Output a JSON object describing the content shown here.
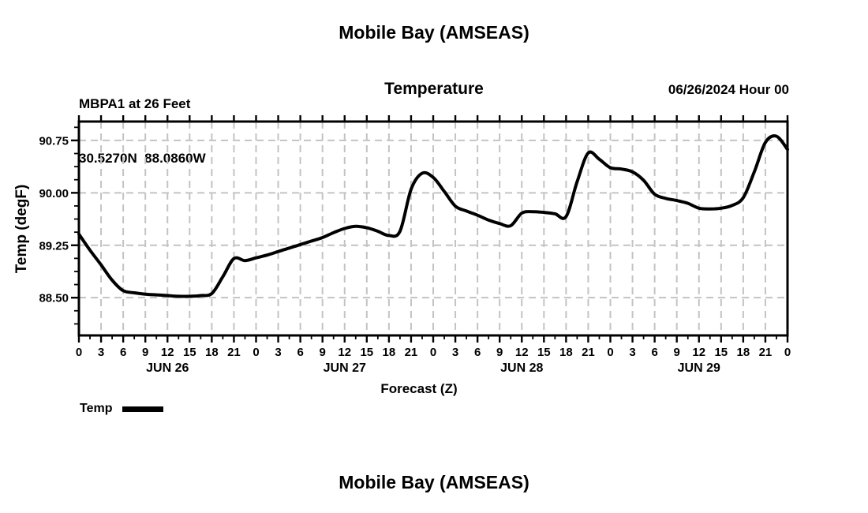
{
  "header": {
    "title": "Mobile Bay (AMSEAS)",
    "station_line1": "MBPA1 at 26 Feet",
    "station_line2": "30.5270N  88.0860W",
    "subtitle": "Temperature",
    "datetime": "06/26/2024 Hour 00"
  },
  "legend": {
    "label": "Temp",
    "position": "bottom-left",
    "swatch_color": "#000000"
  },
  "footer": {
    "next_title": "Mobile Bay (AMSEAS)"
  },
  "chart_data": {
    "type": "line",
    "title": "Mobile Bay (AMSEAS)",
    "subtitle": "Temperature",
    "xlabel": "Forecast (Z)",
    "ylabel": "Temp (degF)",
    "xlim_hours": [
      0,
      96
    ],
    "ylim": [
      87.96,
      91.02
    ],
    "grid": "dashed",
    "line_color": "#000000",
    "grid_color": "#c3c3c3",
    "yticks": [
      90.75,
      90.0,
      89.25,
      88.5
    ],
    "ytick_labels": [
      "90.75",
      "90.00",
      "89.25",
      "88.50"
    ],
    "xtick_step_hours": 3,
    "xtick_labels": [
      "0",
      "3",
      "6",
      "9",
      "12",
      "15",
      "18",
      "21",
      "0",
      "3",
      "6",
      "9",
      "12",
      "15",
      "18",
      "21",
      "0",
      "3",
      "6",
      "9",
      "12",
      "15",
      "18",
      "21",
      "0",
      "3",
      "6",
      "9",
      "12",
      "15",
      "18",
      "21",
      "0"
    ],
    "day_labels": [
      "JUN 26",
      "JUN 27",
      "JUN 28",
      "JUN 29"
    ],
    "series": [
      {
        "name": "Temp",
        "x_hours": [
          0,
          1.5,
          3,
          4.5,
          6,
          7.5,
          9,
          10.5,
          12,
          13.5,
          15,
          16.5,
          18,
          19.5,
          21,
          22.5,
          24,
          25.5,
          27,
          28.5,
          30,
          31.5,
          33,
          34.5,
          36,
          37.5,
          39,
          40.5,
          42,
          43.5,
          45,
          46.5,
          48,
          49.5,
          51,
          52.5,
          54,
          55.5,
          57,
          58.5,
          60,
          61.5,
          63,
          64.5,
          66,
          67.5,
          69,
          70.5,
          72,
          73.5,
          75,
          76.5,
          78,
          79.5,
          81,
          82.5,
          84,
          85.5,
          87,
          88.5,
          90,
          91.5,
          93,
          94.5,
          96
        ],
        "temps_degF": [
          89.41,
          89.18,
          88.97,
          88.75,
          88.6,
          88.57,
          88.55,
          88.54,
          88.53,
          88.52,
          88.52,
          88.53,
          88.56,
          88.8,
          89.06,
          89.03,
          89.07,
          89.11,
          89.16,
          89.21,
          89.26,
          89.31,
          89.36,
          89.43,
          89.49,
          89.52,
          89.5,
          89.45,
          89.39,
          89.45,
          90.05,
          90.28,
          90.22,
          90.02,
          89.81,
          89.74,
          89.68,
          89.61,
          89.56,
          89.53,
          89.71,
          89.73,
          89.72,
          89.7,
          89.66,
          90.16,
          90.57,
          90.48,
          90.36,
          90.34,
          90.3,
          90.18,
          89.98,
          89.92,
          89.89,
          89.85,
          89.78,
          89.77,
          89.78,
          89.82,
          89.93,
          90.3,
          90.72,
          90.81,
          90.62
        ]
      }
    ]
  }
}
